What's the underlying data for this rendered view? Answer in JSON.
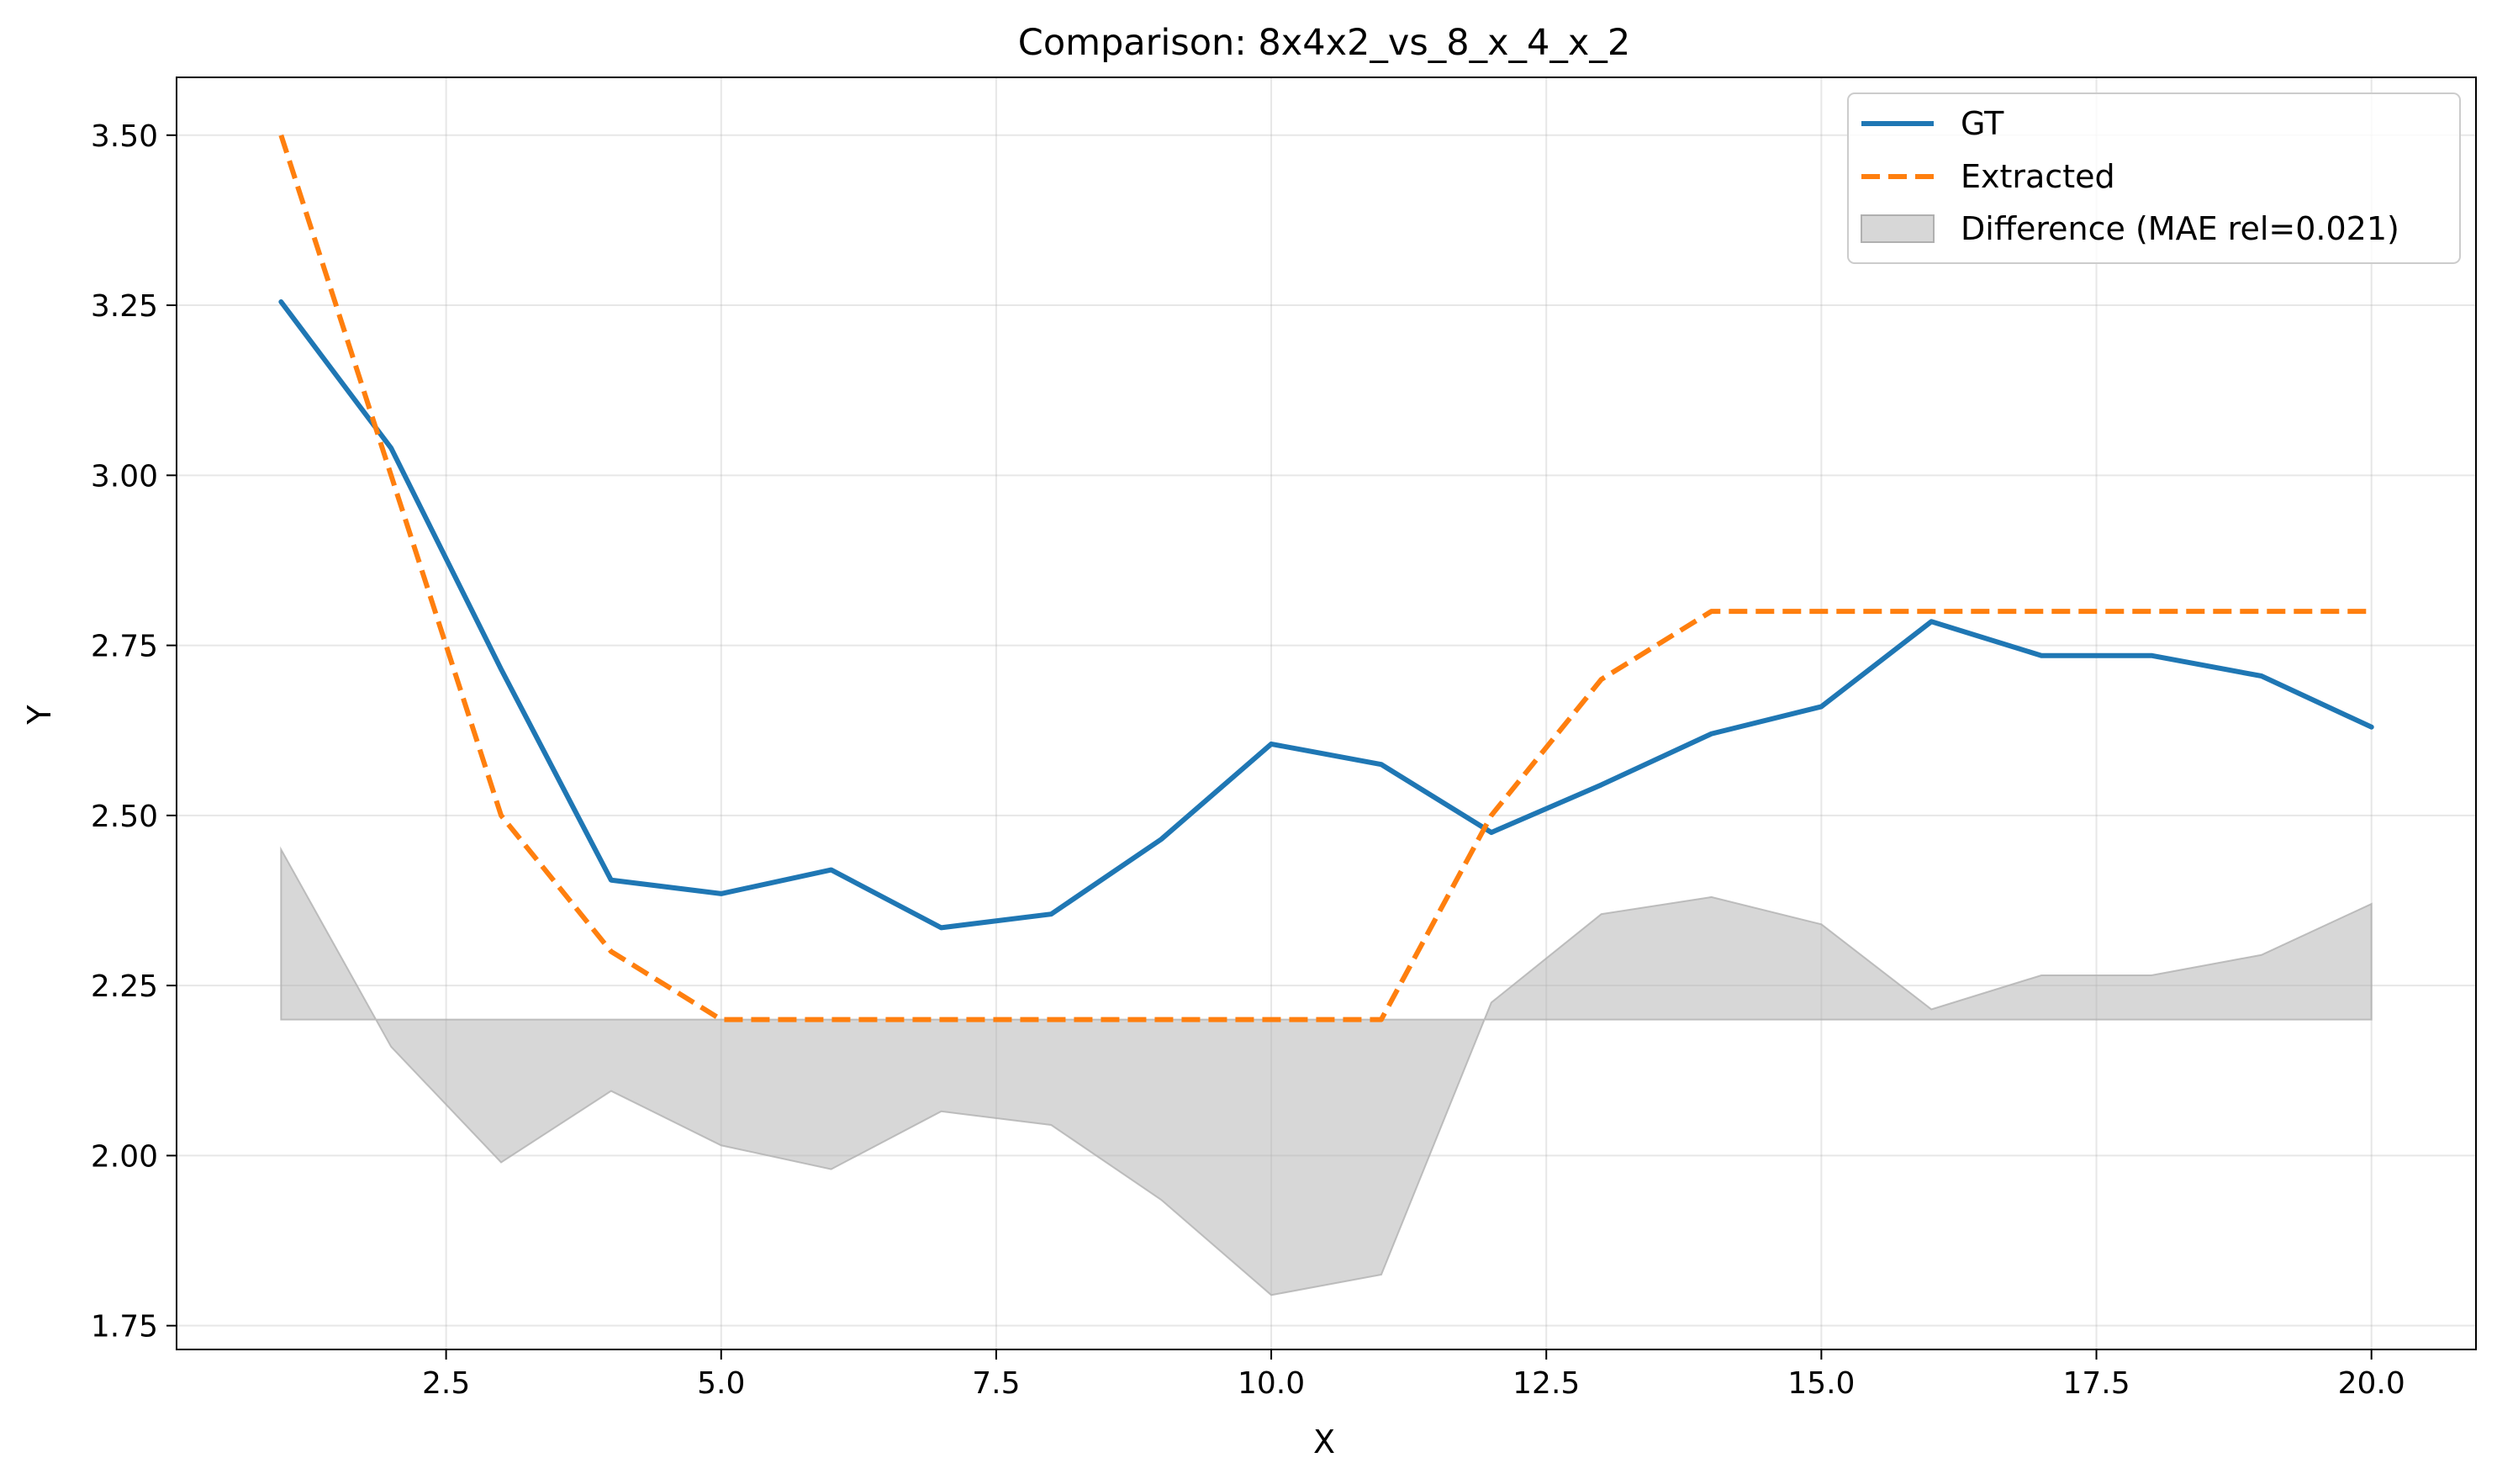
{
  "chart_data": {
    "type": "line",
    "title": "Comparison: 8x4x2_vs_8_x_4_x_2",
    "xlabel": "X",
    "ylabel": "Y",
    "xlim": [
      0.05,
      20.95
    ],
    "ylim": [
      1.715,
      3.585
    ],
    "xticks": [
      2.5,
      5.0,
      7.5,
      10.0,
      12.5,
      15.0,
      17.5,
      20.0
    ],
    "xtick_labels": [
      "2.5",
      "5.0",
      "7.5",
      "10.0",
      "12.5",
      "15.0",
      "17.5",
      "20.0"
    ],
    "yticks": [
      1.75,
      2.0,
      2.25,
      2.5,
      2.75,
      3.0,
      3.25,
      3.5
    ],
    "ytick_labels": [
      "1.75",
      "2.00",
      "2.25",
      "2.50",
      "2.75",
      "3.00",
      "3.25",
      "3.50"
    ],
    "grid": true,
    "legend_position": "top-right",
    "x": [
      1,
      2,
      3,
      4,
      5,
      6,
      7,
      8,
      9,
      10,
      11,
      12,
      13,
      14,
      15,
      16,
      17,
      18,
      19,
      20
    ],
    "series": [
      {
        "name": "GT",
        "color": "#1f77b4",
        "style": "solid",
        "values": [
          3.255,
          3.04,
          2.715,
          2.405,
          2.385,
          2.42,
          2.335,
          2.355,
          2.465,
          2.605,
          2.575,
          2.475,
          2.545,
          2.62,
          2.66,
          2.785,
          2.735,
          2.735,
          2.705,
          2.63
        ]
      },
      {
        "name": "Extracted",
        "color": "#ff7f0e",
        "style": "dashed",
        "values": [
          3.5,
          3.0,
          2.5,
          2.3,
          2.2,
          2.2,
          2.2,
          2.2,
          2.2,
          2.2,
          2.2,
          2.5,
          2.7,
          2.8,
          2.8,
          2.8,
          2.8,
          2.8,
          2.8,
          2.8
        ]
      }
    ],
    "difference_band": {
      "name": "Difference (MAE rel=0.021)",
      "color": "#b0b0b0",
      "baseline": 2.2,
      "values": [
        2.45,
        2.16,
        1.99,
        2.095,
        2.015,
        1.98,
        2.065,
        2.045,
        1.935,
        1.795,
        1.825,
        2.225,
        2.355,
        2.38,
        2.34,
        2.215,
        2.265,
        2.265,
        2.295,
        2.37
      ]
    }
  }
}
